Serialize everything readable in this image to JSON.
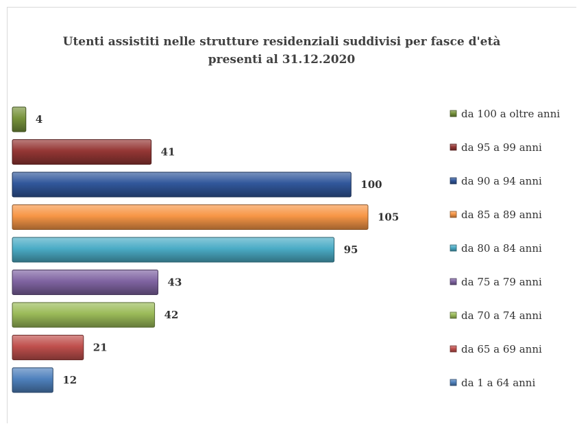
{
  "chart_data": {
    "type": "bar",
    "orientation": "horizontal",
    "title": "Utenti assistiti nelle strutture residenziali suddivisi per fasce d'età",
    "subtitle": "presenti al 31.12.2020",
    "categories": [
      "da 100 a oltre anni",
      "da 95 a 99 anni",
      "da 90 a 94 anni",
      "da 85 a 89 anni",
      "da 80 a 84 anni",
      "da 75 a 79 anni",
      "da 70 a 74 anni",
      "da 65 a 69 anni",
      "da 1 a 64 anni"
    ],
    "values": [
      4,
      41,
      100,
      105,
      95,
      43,
      42,
      21,
      12
    ],
    "value_labels": [
      "4",
      "41",
      "100",
      "105",
      "95",
      "43",
      "42",
      "21",
      "12"
    ],
    "colors": [
      "#77933c",
      "#953735",
      "#31579b",
      "#f79646",
      "#4bacc6",
      "#8064a2",
      "#9bbb59",
      "#c0504d",
      "#4f81bd"
    ],
    "xlim": [
      0,
      105
    ],
    "grid": false,
    "axes_visible": false,
    "legend_position": "right"
  }
}
